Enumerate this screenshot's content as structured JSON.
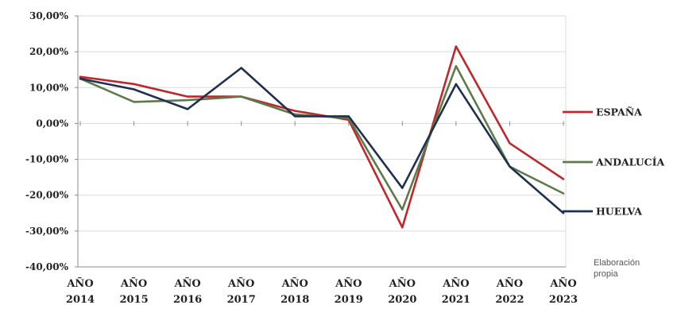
{
  "chart_data": {
    "type": "line",
    "categories": [
      [
        "AÑO",
        "2014"
      ],
      [
        "AÑO",
        "2015"
      ],
      [
        "AÑO",
        "2016"
      ],
      [
        "AÑO",
        "2017"
      ],
      [
        "AÑO",
        "2018"
      ],
      [
        "AÑO",
        "2019"
      ],
      [
        "AÑO",
        "2020"
      ],
      [
        "AÑO",
        "2021"
      ],
      [
        "AÑO",
        "2022"
      ],
      [
        "AÑO",
        "2023"
      ]
    ],
    "yticks": [
      "30,00%",
      "20,00%",
      "10,00%",
      "0,00%",
      "-10,00%",
      "-20,00%",
      "-30,00%",
      "-40,00%"
    ],
    "ytick_values": [
      30,
      20,
      10,
      0,
      -10,
      -20,
      -30,
      -40
    ],
    "ylim": [
      -40,
      30
    ],
    "grid": "horizontal",
    "legend_position": "right",
    "series": [
      {
        "name": "ESPAÑA",
        "color": "#c0272d",
        "values": [
          13.0,
          11.0,
          7.5,
          7.5,
          3.5,
          1.0,
          -29.0,
          21.5,
          -5.5,
          -15.5
        ]
      },
      {
        "name": "ANDALUCÍA",
        "color": "#5d7b4a",
        "values": [
          12.5,
          6.0,
          6.5,
          7.5,
          2.5,
          1.5,
          -24.0,
          16.0,
          -12.0,
          -19.5
        ]
      },
      {
        "name": "HUELVA",
        "color": "#1f3050",
        "values": [
          12.5,
          9.5,
          4.0,
          15.5,
          2.0,
          2.0,
          -18.0,
          11.0,
          -12.0,
          -25.0
        ]
      }
    ],
    "source_note": [
      "Elaboración",
      "propia"
    ]
  }
}
